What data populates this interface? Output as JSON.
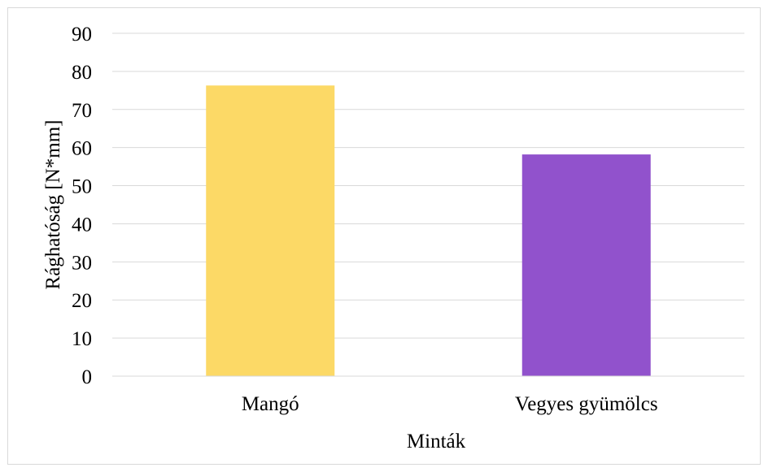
{
  "chart_data": {
    "type": "bar",
    "title": "",
    "xlabel": "Minták",
    "ylabel": "Rághatóság [N*mm]",
    "categories": [
      "Mangó",
      "Vegyes gyümölcs"
    ],
    "values": [
      76.3,
      58.2
    ],
    "bar_colors": [
      "#fcd966",
      "#9152cc"
    ],
    "ylim": [
      0,
      90
    ],
    "yticks": [
      "0",
      "10",
      "20",
      "30",
      "40",
      "50",
      "60",
      "70",
      "80",
      "90"
    ],
    "grid": true,
    "gridline_color": "#d9d9d9",
    "legend": "none"
  }
}
